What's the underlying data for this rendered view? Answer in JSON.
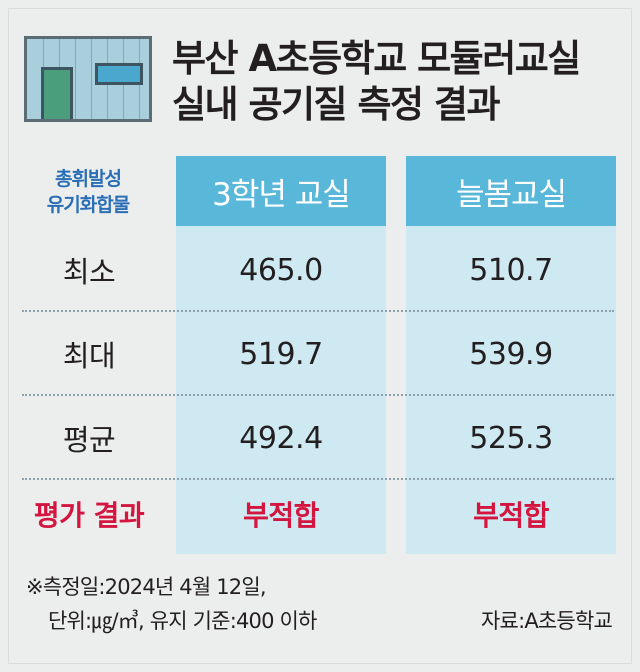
{
  "title_lines": [
    "부산 A초등학교 모듈러교실",
    "실내 공기질 측정 결과"
  ],
  "header_label_lines": [
    "총휘발성",
    "유기화합물"
  ],
  "columns": [
    "3학년 교실",
    "늘봄교실"
  ],
  "rows": [
    {
      "label": "최소",
      "values": [
        "465.0",
        "510.7"
      ]
    },
    {
      "label": "최대",
      "values": [
        "519.7",
        "539.9"
      ]
    },
    {
      "label": "평균",
      "values": [
        "492.4",
        "525.3"
      ]
    },
    {
      "label": "평가 결과",
      "values": [
        "부적합",
        "부적합"
      ]
    }
  ],
  "note_lines": [
    "※측정일:2024년 4월 12일,",
    "단위:㎍/㎥, 유지 기준:400 이하"
  ],
  "source": "자료:A초등학교",
  "colors": {
    "header_blue": "#59b7d9",
    "column_light_blue": "#cfe9f2",
    "label_blue": "#2a6fb5",
    "result_red": "#d4153f"
  },
  "icon": "classroom-icon",
  "chart_data": {
    "type": "table",
    "title": "부산 A초등학교 모듈러교실 실내 공기질 측정 결과",
    "row_header": "총휘발성 유기화합물",
    "columns": [
      "3학년 교실",
      "늘봄교실"
    ],
    "rows": [
      {
        "label": "최소",
        "values": [
          465.0,
          510.7
        ]
      },
      {
        "label": "최대",
        "values": [
          519.7,
          539.9
        ]
      },
      {
        "label": "평균",
        "values": [
          492.4,
          525.3
        ]
      },
      {
        "label": "평가 결과",
        "values": [
          "부적합",
          "부적합"
        ]
      }
    ],
    "unit": "㎍/㎥",
    "standard": "400 이하"
  }
}
